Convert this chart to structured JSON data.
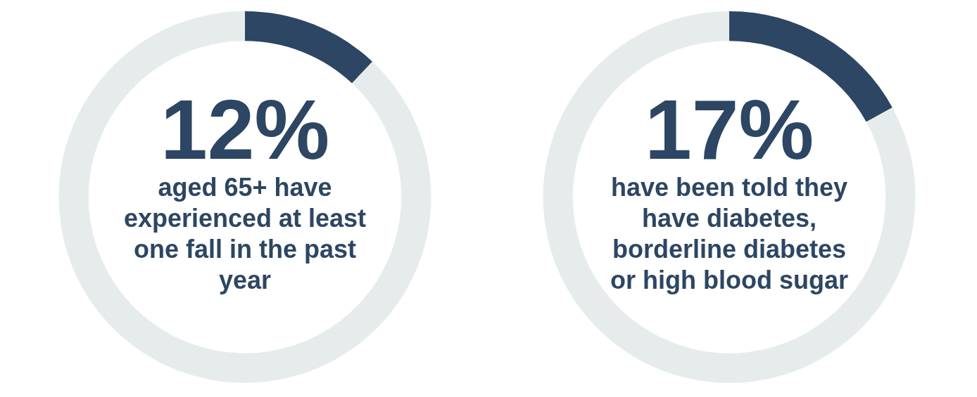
{
  "chart_data": [
    {
      "type": "donut",
      "categories": [
        null,
        null
      ],
      "values": [
        12,
        88
      ],
      "colors": [
        "#2c4663",
        "#e6ecec"
      ],
      "value_labels": [
        "12%",
        null
      ],
      "annotations": [
        "aged 65+ have experienced at least one fall in the past year"
      ],
      "legend": false
    },
    {
      "type": "donut",
      "categories": [
        null,
        null
      ],
      "values": [
        17,
        83
      ],
      "colors": [
        "#2c4663",
        "#e6ecec"
      ],
      "value_labels": [
        "17%",
        null
      ],
      "annotations": [
        "have been told they have diabetes, borderline diabetes or high blood sugar"
      ],
      "legend": false
    }
  ]
}
